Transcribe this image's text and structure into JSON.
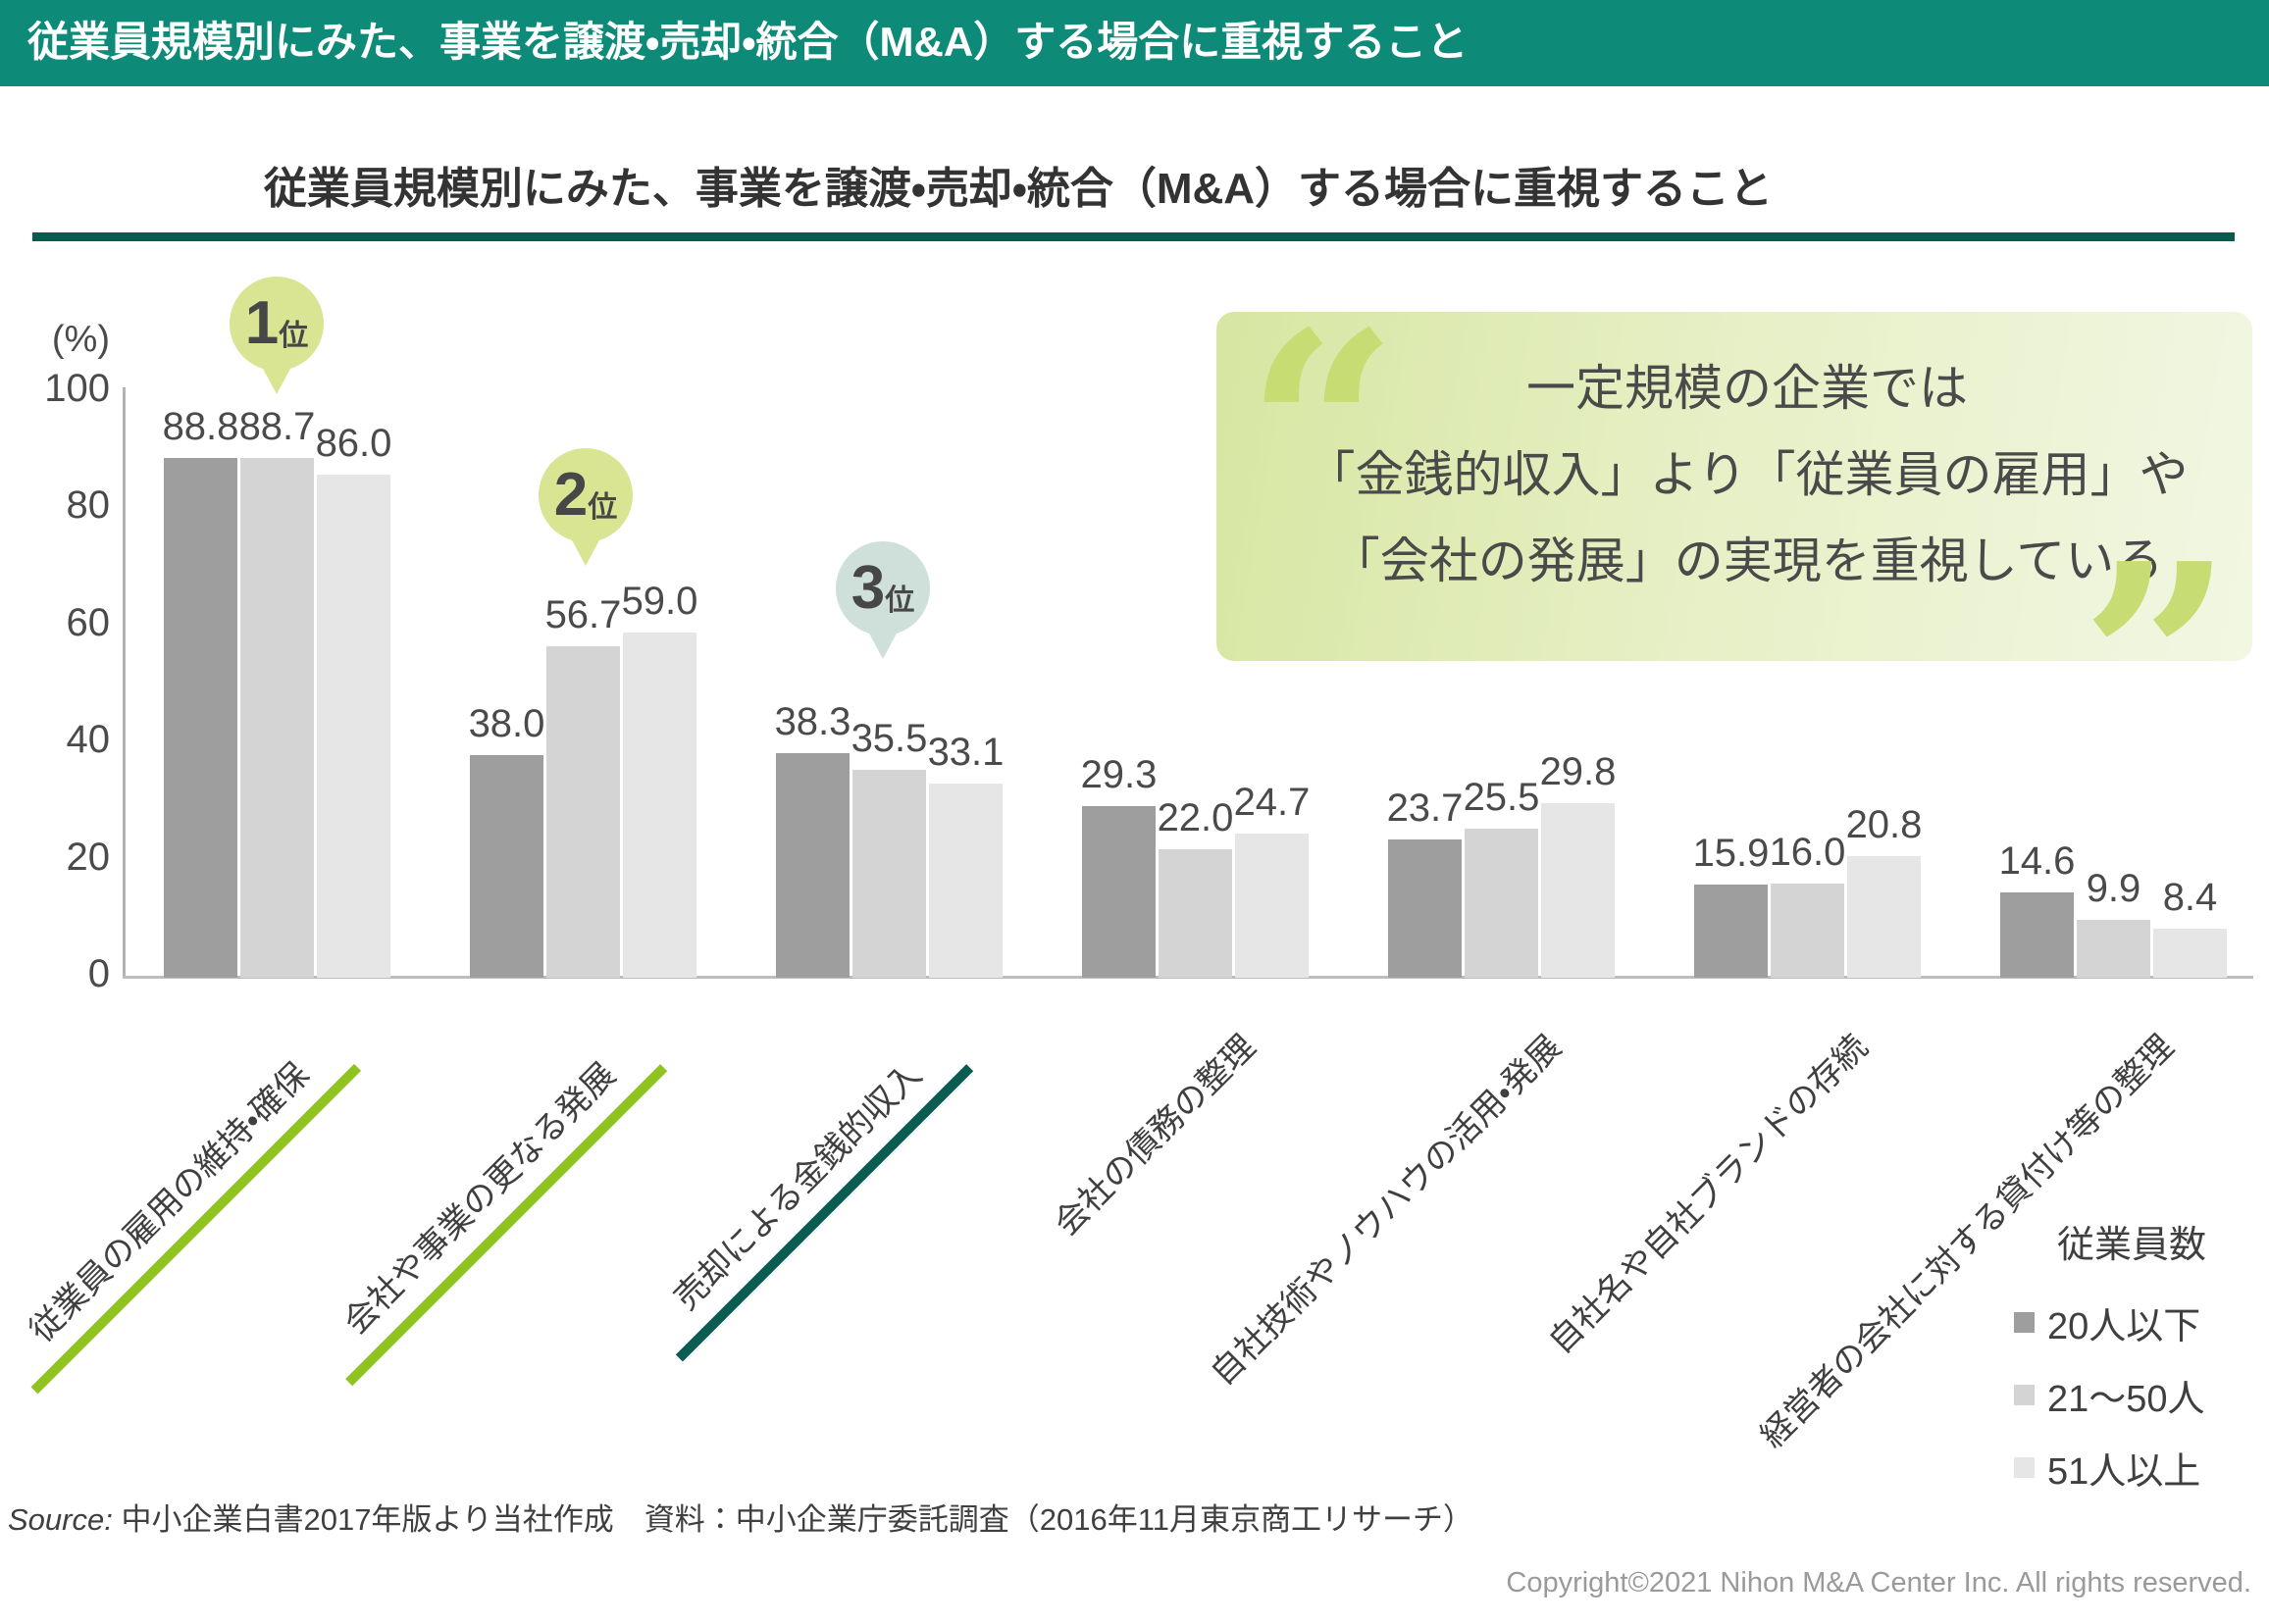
{
  "header": {
    "title": "従業員規模別にみた、事業を譲渡・売却・統合（M&A）する場合に重視すること"
  },
  "chart_title": "従業員規模別にみた、事業を譲渡・売却・統合（M&A）する場合に重視すること",
  "chart_data": {
    "type": "bar",
    "title": "従業員規模別にみた、事業を譲渡・売却・統合（M&A）する場合に重視すること",
    "xlabel": "",
    "ylabel": "(%)",
    "ylim": [
      0,
      100
    ],
    "yticks": [
      0,
      20,
      40,
      60,
      80,
      100
    ],
    "grid": false,
    "legend_position": "bottom-right",
    "legend_title": "従業員数",
    "categories": [
      "従業員の雇用の維持・確保",
      "会社や事業の更なる発展",
      "売却による金銭的収入",
      "会社の債務の整理",
      "自社技術やノウハウの活用・発展",
      "自社名や自社ブランドの存続",
      "経営者の会社に対する貸付け等の整理"
    ],
    "category_accent_colors": [
      "#8fc31f",
      "#8fc31f",
      "#0a5c52",
      null,
      null,
      null,
      null
    ],
    "series": [
      {
        "name": "20人以下",
        "color": "#9e9e9e",
        "values": [
          88.8,
          38.0,
          38.3,
          29.3,
          23.7,
          15.9,
          14.6
        ]
      },
      {
        "name": "21～50人",
        "color": "#d4d4d4",
        "values": [
          88.7,
          56.7,
          35.5,
          22.0,
          25.5,
          16.0,
          9.9
        ]
      },
      {
        "name": "51人以上",
        "color": "#e6e6e6",
        "values": [
          86.0,
          59.0,
          33.1,
          24.7,
          29.8,
          20.8,
          8.4
        ]
      }
    ]
  },
  "axis": {
    "unit_label": "(%)"
  },
  "badges": [
    {
      "rank": "1",
      "suffix": "位",
      "color": "#d9e593"
    },
    {
      "rank": "2",
      "suffix": "位",
      "color": "#d9e593"
    },
    {
      "rank": "3",
      "suffix": "位",
      "color": "#cfe0db"
    }
  ],
  "quote": {
    "lines": [
      "一定規模の企業では",
      "「金銭的収入」より「従業員の雇用」や",
      "「会社の発展」の実現を重視している"
    ]
  },
  "source": {
    "prefix": "Source:",
    "text": "中小企業白書2017年版より当社作成　資料：中小企業庁委託調査（2016年11月東京商工リサーチ）"
  },
  "footer": {
    "copyright": "Copyright©2021 Nihon M&A Center Inc. All rights reserved."
  },
  "colors": {
    "header_teal": "#0e8a79",
    "rule_teal": "#0a5a50",
    "accent_green": "#8fc31f",
    "badge_green": "#d9e593",
    "badge_teal": "#cfe0db",
    "quote_bg_start": "#d7e6a2",
    "quote_bg_end": "#f2f7e3",
    "quote_mark": "#c8dc74"
  }
}
